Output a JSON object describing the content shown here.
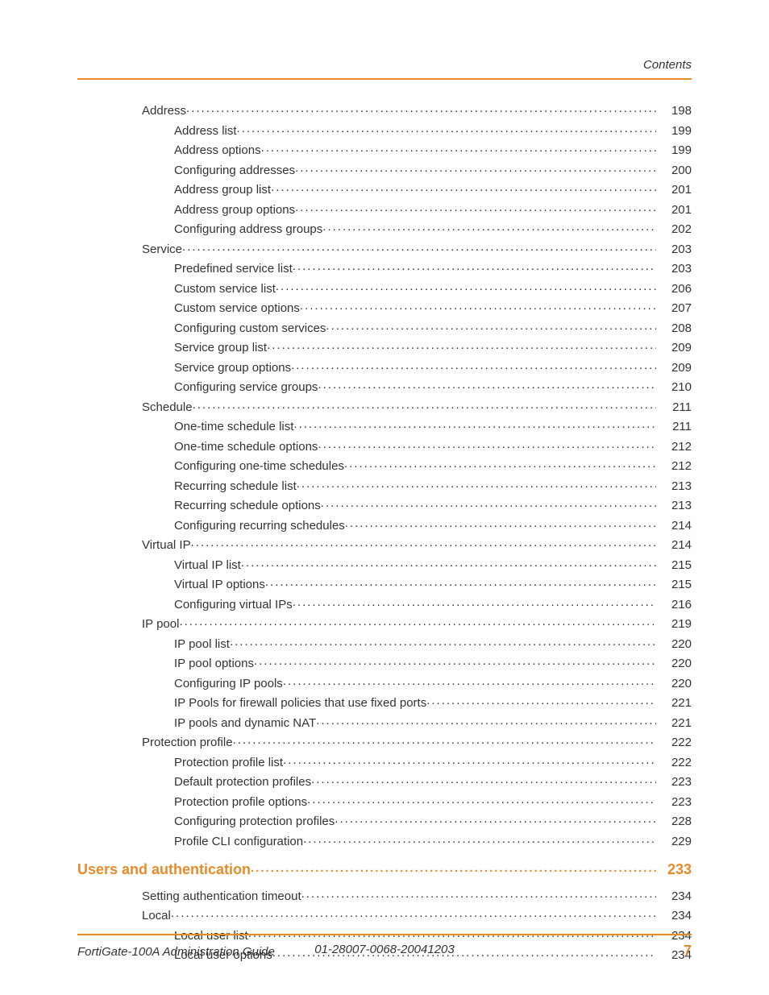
{
  "header": {
    "label": "Contents"
  },
  "footer": {
    "left": "FortiGate-100A Administration Guide",
    "center": "01-28007-0068-20041203",
    "page_number": "7"
  },
  "colors": {
    "accent": "#e78b2a",
    "text": "#333333",
    "background": "#ffffff"
  },
  "toc": {
    "entries": [
      {
        "label": "Address",
        "page": "198",
        "level": 1
      },
      {
        "label": "Address list",
        "page": "199",
        "level": 2
      },
      {
        "label": "Address options",
        "page": "199",
        "level": 2
      },
      {
        "label": "Configuring addresses",
        "page": "200",
        "level": 2
      },
      {
        "label": "Address group list",
        "page": "201",
        "level": 2
      },
      {
        "label": "Address group options",
        "page": "201",
        "level": 2
      },
      {
        "label": "Configuring address groups",
        "page": "202",
        "level": 2
      },
      {
        "label": "Service",
        "page": "203",
        "level": 1
      },
      {
        "label": "Predefined service list",
        "page": "203",
        "level": 2
      },
      {
        "label": "Custom service list",
        "page": "206",
        "level": 2
      },
      {
        "label": "Custom service options",
        "page": "207",
        "level": 2
      },
      {
        "label": "Configuring custom services",
        "page": "208",
        "level": 2
      },
      {
        "label": "Service group list",
        "page": "209",
        "level": 2
      },
      {
        "label": "Service group options",
        "page": "209",
        "level": 2
      },
      {
        "label": "Configuring service groups",
        "page": "210",
        "level": 2
      },
      {
        "label": "Schedule",
        "page": "211",
        "level": 1
      },
      {
        "label": "One-time schedule list",
        "page": "211",
        "level": 2
      },
      {
        "label": "One-time schedule options",
        "page": "212",
        "level": 2
      },
      {
        "label": "Configuring one-time schedules",
        "page": "212",
        "level": 2
      },
      {
        "label": "Recurring schedule list",
        "page": "213",
        "level": 2
      },
      {
        "label": "Recurring schedule options",
        "page": "213",
        "level": 2
      },
      {
        "label": "Configuring recurring schedules",
        "page": "214",
        "level": 2
      },
      {
        "label": "Virtual IP",
        "page": "214",
        "level": 1
      },
      {
        "label": "Virtual IP list",
        "page": "215",
        "level": 2
      },
      {
        "label": "Virtual IP options",
        "page": "215",
        "level": 2
      },
      {
        "label": "Configuring virtual IPs",
        "page": "216",
        "level": 2
      },
      {
        "label": "IP pool",
        "page": "219",
        "level": 1
      },
      {
        "label": "IP pool list",
        "page": "220",
        "level": 2
      },
      {
        "label": "IP pool options",
        "page": "220",
        "level": 2
      },
      {
        "label": "Configuring IP pools",
        "page": "220",
        "level": 2
      },
      {
        "label": "IP Pools for firewall policies that use fixed ports",
        "page": "221",
        "level": 2
      },
      {
        "label": "IP pools and dynamic NAT",
        "page": "221",
        "level": 2
      },
      {
        "label": "Protection profile",
        "page": "222",
        "level": 1
      },
      {
        "label": "Protection profile list",
        "page": "222",
        "level": 2
      },
      {
        "label": "Default protection profiles",
        "page": "223",
        "level": 2
      },
      {
        "label": "Protection profile options",
        "page": "223",
        "level": 2
      },
      {
        "label": "Configuring protection profiles",
        "page": "228",
        "level": 2
      },
      {
        "label": "Profile CLI configuration",
        "page": "229",
        "level": 2
      },
      {
        "label": "Users and authentication",
        "page": "233",
        "level": 0,
        "chapter": true
      },
      {
        "label": "Setting authentication timeout",
        "page": "234",
        "level": 1
      },
      {
        "label": "Local",
        "page": "234",
        "level": 1
      },
      {
        "label": "Local user list",
        "page": "234",
        "level": 2
      },
      {
        "label": "Local user options",
        "page": "234",
        "level": 2
      }
    ]
  }
}
